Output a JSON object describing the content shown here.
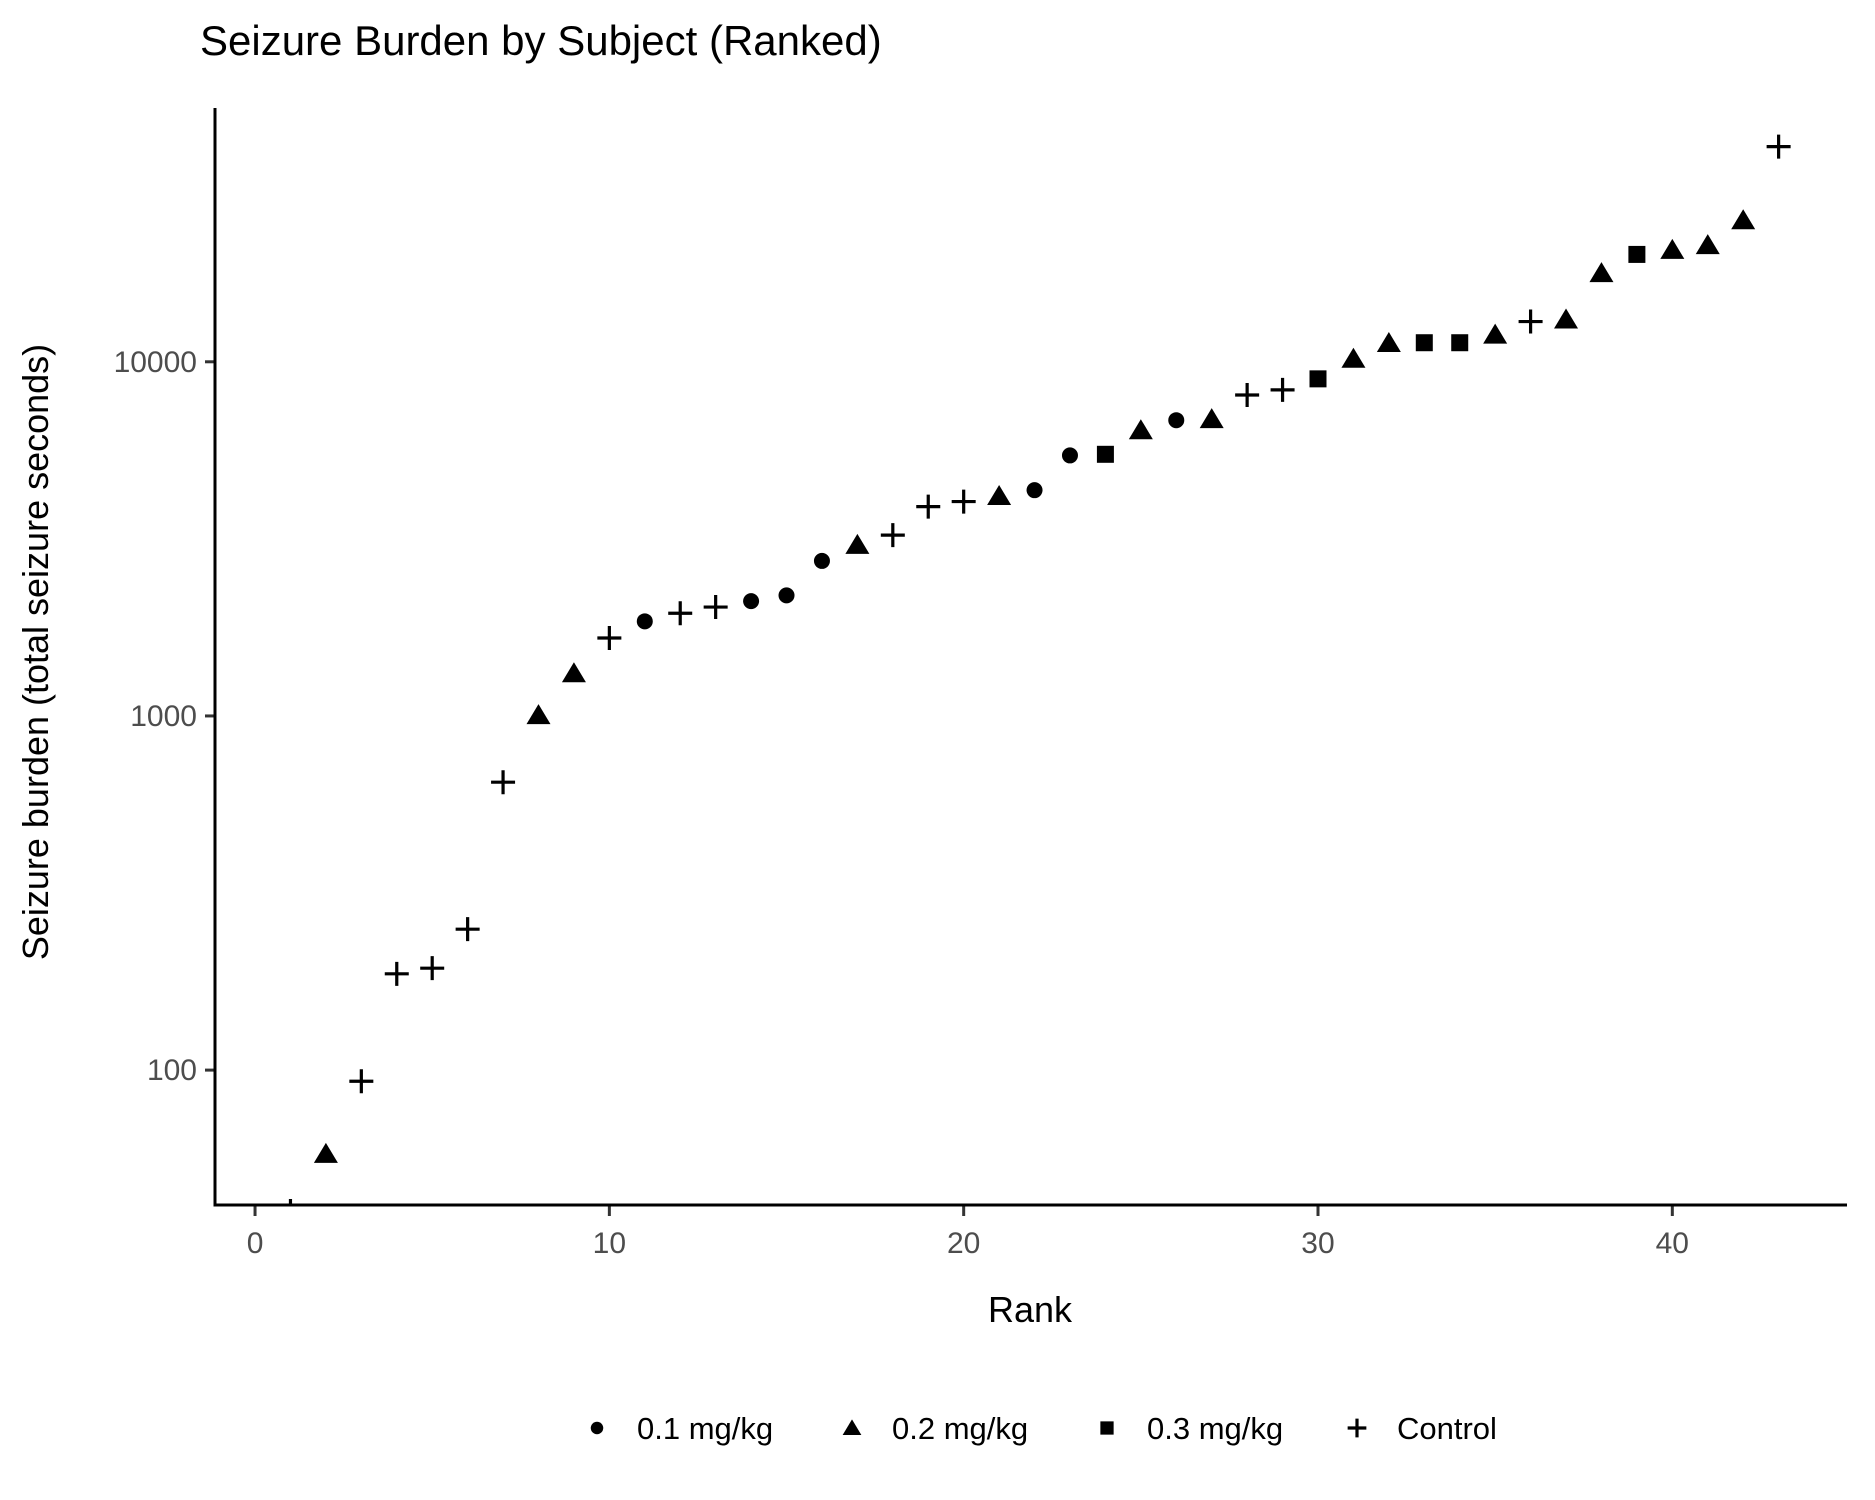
{
  "title": "Seizure Burden by Subject (Ranked)",
  "x_axis": {
    "label": "Rank",
    "ticks": [
      0,
      10,
      20,
      30,
      40
    ]
  },
  "y_axis": {
    "label": "Seizure burden (total seizure seconds)",
    "ticks": [
      100,
      1000,
      10000
    ]
  },
  "legend": [
    {
      "label": "0.1 mg/kg",
      "marker": "circle"
    },
    {
      "label": "0.2 mg/kg",
      "marker": "triangle"
    },
    {
      "label": "0.3 mg/kg",
      "marker": "square"
    },
    {
      "label": "Control",
      "marker": "plus"
    }
  ],
  "colors": {
    "points": "#000000",
    "axis_line": "#000000",
    "tick_label": "#4d4d4d",
    "background": "#ffffff"
  },
  "chart_data": {
    "type": "scatter",
    "title": "Seizure Burden by Subject (Ranked)",
    "xlabel": "Rank",
    "ylabel": "Seizure burden (total seizure seconds)",
    "x_scale": "linear",
    "y_scale": "log10",
    "xlim": [
      -1.13,
      44.93
    ],
    "ylim": [
      41.6,
      53100
    ],
    "grid": false,
    "legend_position": "bottom",
    "series": [
      {
        "name": "0.1 mg/kg",
        "marker": "circle",
        "points": [
          {
            "rank": 11,
            "value": 1850
          },
          {
            "rank": 14,
            "value": 2110
          },
          {
            "rank": 15,
            "value": 2190
          },
          {
            "rank": 16,
            "value": 2740
          },
          {
            "rank": 22,
            "value": 4340
          },
          {
            "rank": 23,
            "value": 5440
          },
          {
            "rank": 26,
            "value": 6840
          }
        ]
      },
      {
        "name": "0.2 mg/kg",
        "marker": "triangle",
        "points": [
          {
            "rank": 2,
            "value": 58
          },
          {
            "rank": 8,
            "value": 1005
          },
          {
            "rank": 9,
            "value": 1320
          },
          {
            "rank": 17,
            "value": 3040
          },
          {
            "rank": 21,
            "value": 4180
          },
          {
            "rank": 25,
            "value": 6410
          },
          {
            "rank": 27,
            "value": 6890
          },
          {
            "rank": 31,
            "value": 10200
          },
          {
            "rank": 32,
            "value": 11300
          },
          {
            "rank": 35,
            "value": 11930
          },
          {
            "rank": 37,
            "value": 13160
          },
          {
            "rank": 38,
            "value": 17800
          },
          {
            "rank": 40,
            "value": 20700
          },
          {
            "rank": 41,
            "value": 21360
          },
          {
            "rank": 42,
            "value": 25100
          }
        ]
      },
      {
        "name": "0.3 mg/kg",
        "marker": "square",
        "points": [
          {
            "rank": 24,
            "value": 5480
          },
          {
            "rank": 30,
            "value": 8950
          },
          {
            "rank": 33,
            "value": 11320
          },
          {
            "rank": 34,
            "value": 11320
          },
          {
            "rank": 39,
            "value": 20100
          }
        ]
      },
      {
        "name": "Control",
        "marker": "plus",
        "points": [
          {
            "rank": 1,
            "value": 40
          },
          {
            "rank": 3,
            "value": 93
          },
          {
            "rank": 4,
            "value": 187
          },
          {
            "rank": 5,
            "value": 194
          },
          {
            "rank": 6,
            "value": 250
          },
          {
            "rank": 7,
            "value": 650
          },
          {
            "rank": 10,
            "value": 1660
          },
          {
            "rank": 12,
            "value": 1950
          },
          {
            "rank": 13,
            "value": 2030
          },
          {
            "rank": 18,
            "value": 3240
          },
          {
            "rank": 19,
            "value": 3900
          },
          {
            "rank": 20,
            "value": 4030
          },
          {
            "rank": 28,
            "value": 8060
          },
          {
            "rank": 29,
            "value": 8330
          },
          {
            "rank": 36,
            "value": 12990
          },
          {
            "rank": 43,
            "value": 40500
          }
        ]
      }
    ]
  }
}
